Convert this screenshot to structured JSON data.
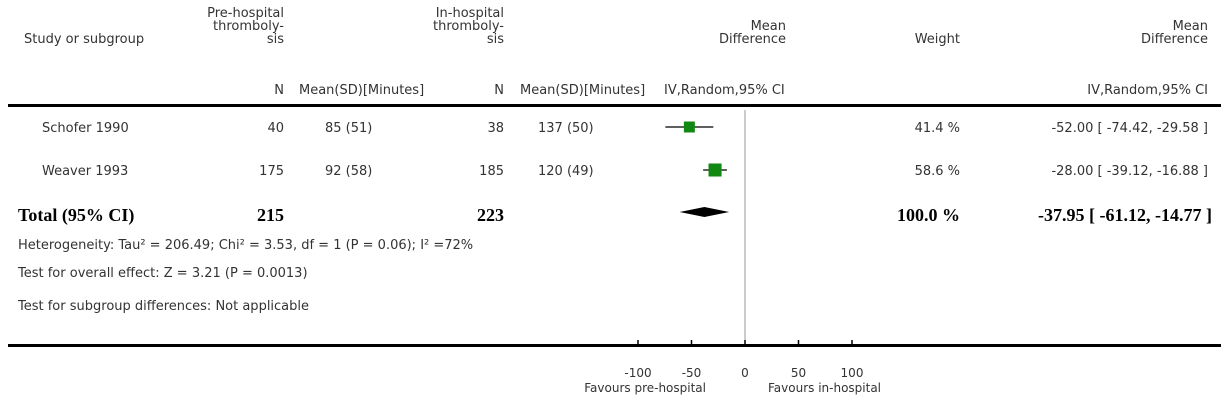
{
  "chart_data": {
    "type": "forest",
    "headers": {
      "study": "Study or subgroup",
      "group1": [
        "Pre-hospital",
        "thromboly-",
        "sis"
      ],
      "group2": [
        "In-hospital",
        "thromboly-",
        "sis"
      ],
      "effect_plot": [
        "Mean",
        "Difference"
      ],
      "weight": "Weight",
      "effect_text": [
        "Mean",
        "Difference"
      ],
      "sub_n1": "N",
      "sub_mean1": "Mean(SD)[Minutes]",
      "sub_n2": "N",
      "sub_mean2": "Mean(SD)[Minutes]",
      "sub_plot": "IV,Random,95% CI",
      "sub_text": "IV,Random,95% CI"
    },
    "studies": [
      {
        "name": "Schofer 1990",
        "n1": "40",
        "mean1": "85 (51)",
        "n2": "38",
        "mean2": "137 (50)",
        "weight": "41.4 %",
        "ci_text": "-52.00 [ -74.42, -29.58 ]",
        "md": -52.0,
        "lo": -74.42,
        "hi": -29.58,
        "w": 41.4
      },
      {
        "name": "Weaver 1993",
        "n1": "175",
        "mean1": "92 (58)",
        "n2": "185",
        "mean2": "120 (49)",
        "weight": "58.6 %",
        "ci_text": "-28.00 [ -39.12, -16.88 ]",
        "md": -28.0,
        "lo": -39.12,
        "hi": -16.88,
        "w": 58.6
      }
    ],
    "total": {
      "label": "Total (95% CI)",
      "n1": "215",
      "n2": "223",
      "weight": "100.0 %",
      "ci_text": "-37.95 [ -61.12, -14.77 ]",
      "md": -37.95,
      "lo": -61.12,
      "hi": -14.77
    },
    "notes": {
      "heterogeneity": "Heterogeneity: Tau² = 206.49; Chi² = 3.53, df = 1 (P = 0.06); I² =72%",
      "overall": "Test for overall effect: Z = 3.21 (P = 0.0013)",
      "subgroup": "Test for subgroup differences: Not applicable"
    },
    "axis": {
      "min": -100,
      "max": 100,
      "ticks": [
        -100,
        -50,
        0,
        50,
        100
      ],
      "tick_labels": [
        "-100",
        "-50",
        "0",
        "50",
        "100"
      ]
    },
    "favours_left": "Favours pre-hospital",
    "favours_right": "Favours in-hospital",
    "colors": {
      "marker": "#118811",
      "diamond": "#000000",
      "line": "#000000",
      "null_line": "#999999"
    }
  }
}
